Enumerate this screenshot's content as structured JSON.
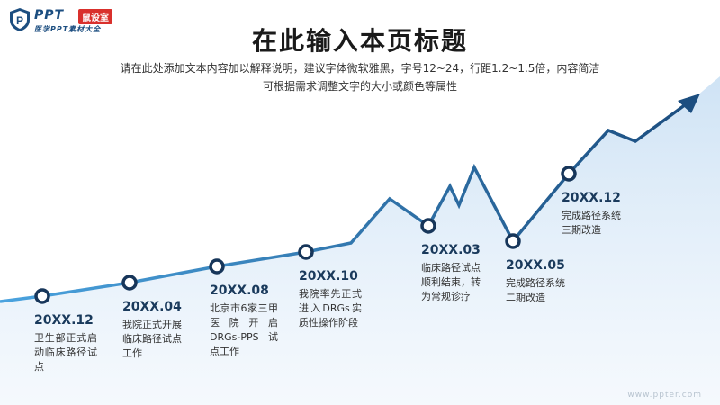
{
  "logo": {
    "brand": "PPT",
    "badge": "鼠设室",
    "sub": "医学PPT素材大全",
    "shield_letter": "P"
  },
  "title": "在此输入本页标题",
  "subtitle_lines": [
    "请在此处添加文本内容加以解释说明，建议字体微软雅黑，字号12~24，行距1.2~1.5倍，内容简洁",
    "可根据需求调整文字的大小或颜色等属性"
  ],
  "milestones": [
    {
      "date": "20XX.12",
      "desc": "卫生部正式启动临床路径试点"
    },
    {
      "date": "20XX.04",
      "desc": "我院正式开展临床路径试点工作"
    },
    {
      "date": "20XX.08",
      "desc": "北京市6家三甲医院开启DRGs-PPS试点工作"
    },
    {
      "date": "20XX.10",
      "desc": "我院率先正式进入DRGs实质性操作阶段"
    },
    {
      "date": "20XX.03",
      "desc": "临床路径试点顺利结束，转为常规诊疗"
    },
    {
      "date": "20XX.05",
      "desc": "完成路径系统二期改造"
    },
    {
      "date": "20XX.12",
      "desc": "完成路径系统三期改造"
    }
  ],
  "watermark": "www.ppter.com",
  "colors": {
    "line_start": "#4aa3df",
    "line_end": "#1c4e80",
    "area": "#dcebf8",
    "dot_stroke": "#17365a",
    "badge": "#d9302c"
  }
}
